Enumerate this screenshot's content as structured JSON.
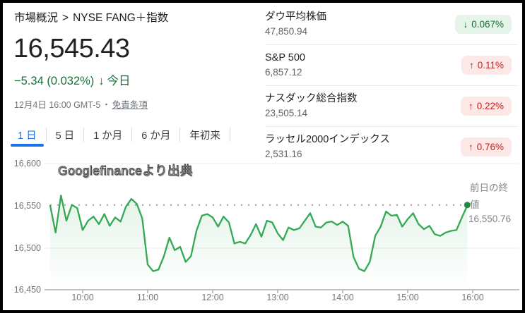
{
  "colors": {
    "accent_blue": "#1a73e8",
    "up_red": "#c5221f",
    "up_badge_bg": "#fce8e6",
    "down_green": "#137333",
    "down_badge_bg": "#e6f4ea",
    "line_green": "#34a853",
    "text_dark": "#202124",
    "text_gray": "#5f6368",
    "axis_gray": "#757575"
  },
  "header": {
    "breadcrumb_root": "市場概況",
    "breadcrumb_separator": ">",
    "breadcrumb_current": "NYSE FANG＋指数",
    "price": "16,545.43",
    "change": "−5.34 (0.032%)",
    "change_arrow": "↓",
    "change_period": "今日",
    "datetime": "12月4日 16:00 GMT-5",
    "dot_separator": "・",
    "disclaimer_link": "免責条項"
  },
  "tabs": [
    {
      "label": "1 日",
      "active": true
    },
    {
      "label": "5 日",
      "active": false
    },
    {
      "label": "1 か月",
      "active": false
    },
    {
      "label": "6 か月",
      "active": false
    },
    {
      "label": "年初来",
      "active": false
    }
  ],
  "watchlist": [
    {
      "name": "ダウ平均株価",
      "value": "47,850.94",
      "arrow": "↓",
      "change": "0.067%",
      "direction": "down"
    },
    {
      "name": "S&P 500",
      "value": "6,857.12",
      "arrow": "↑",
      "change": "0.11%",
      "direction": "up"
    },
    {
      "name": "ナスダック総合指数",
      "value": "23,505.14",
      "arrow": "↑",
      "change": "0.22%",
      "direction": "up"
    },
    {
      "name": "ラッセル2000インデックス",
      "value": "2,531.16",
      "arrow": "↑",
      "change": "0.76%",
      "direction": "up"
    }
  ],
  "chart": {
    "overlay_text": "Googlefinanceより出典",
    "prev_close_label": "前日の終値",
    "prev_close_value_label": "16,550.76"
  },
  "chart_data": {
    "type": "line",
    "title": "NYSE FANG＋指数 1日チャート",
    "x_unit": "minutes_after_09:30",
    "x": [
      0,
      5,
      10,
      15,
      20,
      25,
      30,
      35,
      40,
      45,
      50,
      55,
      60,
      65,
      70,
      75,
      80,
      85,
      90,
      95,
      100,
      105,
      110,
      115,
      120,
      125,
      130,
      135,
      140,
      145,
      150,
      155,
      160,
      165,
      170,
      175,
      180,
      185,
      190,
      195,
      200,
      205,
      210,
      215,
      220,
      225,
      230,
      235,
      240,
      245,
      250,
      255,
      260,
      265,
      270,
      275,
      280,
      285,
      290,
      295,
      300,
      305,
      310,
      315,
      320,
      325,
      330,
      335,
      340,
      345,
      350,
      355,
      360,
      365,
      370,
      375,
      380,
      385
    ],
    "values": [
      16550,
      16518,
      16562,
      16532,
      16551,
      16547,
      16521,
      16532,
      16537,
      16528,
      16540,
      16526,
      16536,
      16531,
      16549,
      16558,
      16552,
      16535,
      16480,
      16472,
      16474,
      16490,
      16512,
      16497,
      16501,
      16483,
      16490,
      16520,
      16538,
      16540,
      16536,
      16525,
      16537,
      16530,
      16505,
      16507,
      16505,
      16515,
      16528,
      16513,
      16532,
      16530,
      16517,
      16509,
      16524,
      16521,
      16523,
      16532,
      16541,
      16525,
      16524,
      16530,
      16531,
      16527,
      16531,
      16526,
      16489,
      16475,
      16472,
      16483,
      16514,
      16525,
      16543,
      16538,
      16539,
      16525,
      16534,
      16541,
      16528,
      16522,
      16526,
      16516,
      16514,
      16518,
      16520,
      16521,
      16536,
      16550
    ],
    "x_ticks": [
      "10:00",
      "11:00",
      "12:00",
      "13:00",
      "14:00",
      "15:00",
      "16:00"
    ],
    "y_ticks": [
      "16,600",
      "16,550",
      "16,500",
      "16,450"
    ],
    "ylim": [
      16450,
      16600
    ],
    "prev_close": 16550.76,
    "last_price": 16545.43,
    "line_color": "#34a853",
    "grid": "on",
    "legend": "off"
  }
}
